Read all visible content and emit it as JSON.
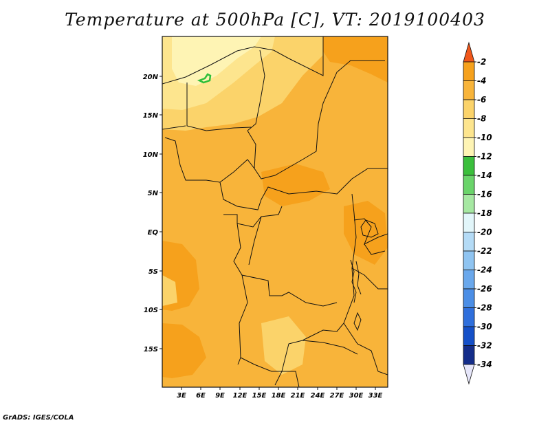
{
  "title": "Temperature at 500hPa [C], VT: 2019100403",
  "credit": "GrADS: IGES/COLA",
  "map": {
    "lat_labels": [
      "20N",
      "15N",
      "10N",
      "5N",
      "EQ",
      "5S",
      "10S",
      "15S"
    ],
    "lon_labels": [
      "3E",
      "6E",
      "9E",
      "12E",
      "15E",
      "18E",
      "21E",
      "24E",
      "27E",
      "30E",
      "33E"
    ],
    "colors": {
      "band_m4_m2": "#f6a11c",
      "band_m6_m4": "#f8b43a",
      "band_m8_m6": "#fbd36a",
      "band_m10_m8": "#fde58e",
      "band_m12_m10": "#fef4b4",
      "contour_m12": "#2fbf3a",
      "border": "#111111"
    }
  },
  "legend": {
    "labels": [
      "-2",
      "-4",
      "-6",
      "-8",
      "-10",
      "-12",
      "-14",
      "-16",
      "-18",
      "-20",
      "-22",
      "-24",
      "-26",
      "-28",
      "-30",
      "-32",
      "-34"
    ],
    "colors": [
      "#f0571b",
      "#f6a11c",
      "#f8b43a",
      "#fbd36a",
      "#fde58e",
      "#fef4b4",
      "#3bbf3c",
      "#6ad46a",
      "#a6e8a2",
      "#e2f6fa",
      "#b4dbf6",
      "#8fc4f1",
      "#6aa8ec",
      "#4b8ee6",
      "#2f6fdc",
      "#1550c8",
      "#142d8a",
      "#e6e6fa"
    ]
  }
}
